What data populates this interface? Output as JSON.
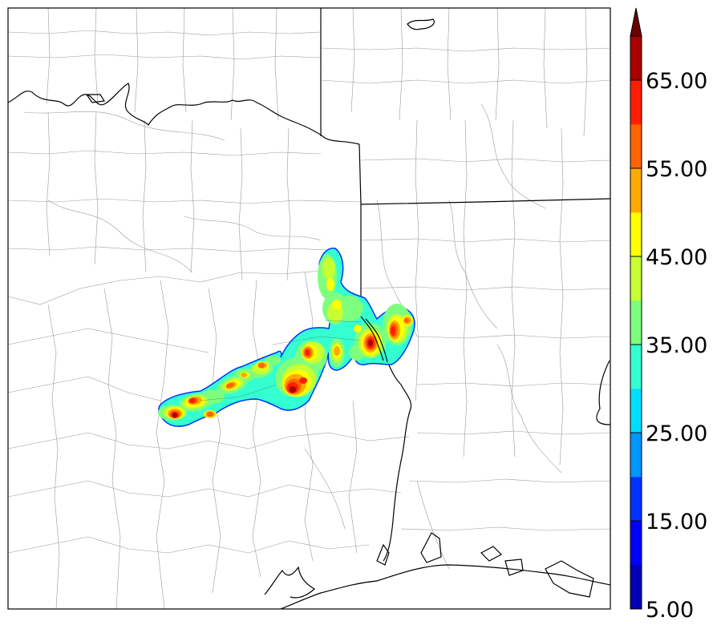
{
  "figure": {
    "colorbar": {
      "levels": [
        5,
        10,
        15,
        20,
        25,
        30,
        35,
        40,
        45,
        50,
        55,
        60,
        65,
        70
      ],
      "colors": [
        "#0000b4",
        "#0000ff",
        "#0032ff",
        "#0096ff",
        "#00ddff",
        "#33ffd0",
        "#7dff7d",
        "#c8ff32",
        "#ffff00",
        "#ffaa00",
        "#ff6400",
        "#ff1e00",
        "#aa0000",
        "#6a0000"
      ],
      "tick_labels": [
        "5.00",
        "15.00",
        "25.00",
        "35.00",
        "45.00",
        "55.00",
        "65.00"
      ],
      "extend": "max"
    }
  }
}
